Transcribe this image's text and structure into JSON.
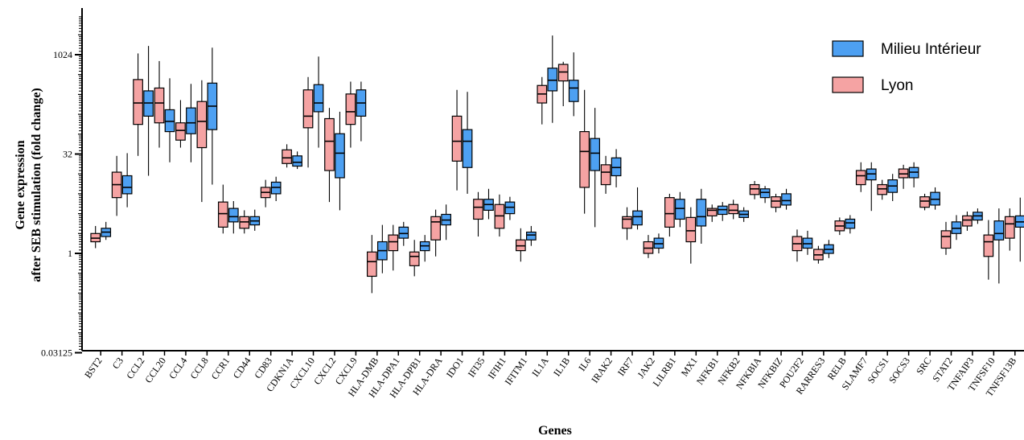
{
  "chart_data": {
    "type": "boxplot",
    "title": "",
    "xlabel": "Genes",
    "ylabel_line1": "Gene expression",
    "ylabel_line2": "after SEB stimulation (fold change)",
    "y_scale": "log2",
    "ylim": [
      0.03125,
      4096
    ],
    "y_ticks": [
      {
        "value": 0.03125,
        "label": "0.03125"
      },
      {
        "value": 1,
        "label": "1"
      },
      {
        "value": 32,
        "label": "32"
      },
      {
        "value": 1024,
        "label": "1024"
      }
    ],
    "legend_position": "top-right",
    "series_colors": {
      "Milieu Intérieur": "#4da0f2",
      "Lyon": "#f5a3a3"
    },
    "categories": [
      "BST2",
      "C3",
      "CCL2",
      "CCL20",
      "CCL4",
      "CCL8",
      "CCR1",
      "CD44",
      "CD83",
      "CDKN1A",
      "CXCL10",
      "CXCL2",
      "CXCL9",
      "HLA-DMB",
      "HLA-DPA1",
      "HLA-DPB1",
      "HLA-DRA",
      "IDO1",
      "IFI35",
      "IFIH1",
      "IFITM1",
      "IL1A",
      "IL1B",
      "IL6",
      "IRAK2",
      "IRF7",
      "JAK2",
      "LILRB1",
      "MX1",
      "NFKB1",
      "NFKB2",
      "NFKBIA",
      "NFKBIZ",
      "POU2F2",
      "RARRES3",
      "RELB",
      "SLAMF7",
      "SOCS1",
      "SOCS3",
      "SRC",
      "STAT2",
      "TNFAIP3",
      "TNFSF10",
      "TNFSF13B"
    ],
    "series": [
      {
        "name": "Lyon",
        "boxes": [
          [
            1.2,
            1.5,
            1.7,
            2.0,
            2.6
          ],
          [
            3.7,
            7.0,
            11,
            17,
            30
          ],
          [
            30,
            90,
            190,
            430,
            1070
          ],
          [
            40,
            95,
            190,
            320,
            820
          ],
          [
            40,
            52,
            73,
            95,
            210
          ],
          [
            6,
            40,
            100,
            200,
            420
          ],
          [
            2.0,
            2.5,
            4.0,
            6.0,
            11
          ],
          [
            2.0,
            2.4,
            3.0,
            3.6,
            4.5
          ],
          [
            5.0,
            7.0,
            8.4,
            10,
            13
          ],
          [
            20,
            23,
            28,
            37,
            45
          ],
          [
            20,
            80,
            120,
            300,
            470
          ],
          [
            6,
            18,
            50,
            110,
            160
          ],
          [
            40,
            90,
            140,
            260,
            400
          ],
          [
            0.25,
            0.45,
            0.75,
            1.05,
            1.9
          ],
          [
            0.55,
            1.1,
            1.5,
            1.9,
            2.7
          ],
          [
            0.45,
            0.65,
            0.9,
            1.05,
            1.6
          ],
          [
            0.9,
            1.6,
            3.0,
            3.6,
            4.6
          ],
          [
            9,
            25,
            50,
            120,
            300
          ],
          [
            1.8,
            3.3,
            5.0,
            6.6,
            8.5
          ],
          [
            1.8,
            2.4,
            3.7,
            5.5,
            7.8
          ],
          [
            0.75,
            1.1,
            1.3,
            1.6,
            2.4
          ],
          [
            90,
            190,
            260,
            350,
            470
          ],
          [
            170,
            410,
            560,
            730,
            800
          ],
          [
            4,
            10,
            35,
            70,
            300
          ],
          [
            8,
            11,
            17,
            22,
            30
          ],
          [
            1.6,
            2.4,
            3.3,
            3.6,
            5.0
          ],
          [
            0.85,
            1.0,
            1.2,
            1.5,
            1.9
          ],
          [
            1.8,
            2.5,
            4.0,
            7.0,
            8.0
          ],
          [
            0.7,
            1.5,
            2.2,
            3.5,
            5.0
          ],
          [
            3.0,
            3.7,
            4.5,
            4.8,
            5.5
          ],
          [
            3.3,
            4.0,
            4.5,
            5.5,
            6.5
          ],
          [
            6.6,
            7.8,
            9.5,
            11,
            12.5
          ],
          [
            4.2,
            5.0,
            6.2,
            7.2,
            8.0
          ],
          [
            0.75,
            1.1,
            1.4,
            1.8,
            2.3
          ],
          [
            0.7,
            0.8,
            0.95,
            1.15,
            1.3
          ],
          [
            1.9,
            2.2,
            2.6,
            3.1,
            3.5
          ],
          [
            8.5,
            11,
            15,
            18,
            24
          ],
          [
            6.5,
            7.8,
            9.5,
            11,
            13
          ],
          [
            9.5,
            14,
            16,
            19,
            22
          ],
          [
            4.5,
            5.0,
            6.2,
            7.2,
            8.0
          ],
          [
            0.95,
            1.2,
            1.8,
            2.2,
            3.0
          ],
          [
            2.2,
            2.6,
            3.2,
            3.7,
            4.3
          ],
          [
            0.4,
            0.9,
            1.5,
            1.9,
            3.2
          ],
          [
            1.1,
            1.7,
            2.8,
            3.6,
            4.8
          ]
        ]
      },
      {
        "name": "Milieu Intérieur",
        "boxes": [
          [
            1.6,
            1.8,
            2.1,
            2.4,
            3.0
          ],
          [
            5.0,
            8.0,
            10,
            15,
            33
          ],
          [
            15,
            120,
            190,
            290,
            1390
          ],
          [
            24,
            70,
            100,
            150,
            450
          ],
          [
            24,
            65,
            95,
            160,
            370
          ],
          [
            11,
            75,
            170,
            380,
            1310
          ],
          [
            2.0,
            3.0,
            3.6,
            4.8,
            6.2
          ],
          [
            2.2,
            2.7,
            3.1,
            3.6,
            4.6
          ],
          [
            6.2,
            8.0,
            10,
            12,
            14.5
          ],
          [
            19,
            21,
            24,
            30,
            35
          ],
          [
            40,
            140,
            190,
            360,
            960
          ],
          [
            4.5,
            14,
            33,
            65,
            140
          ],
          [
            50,
            120,
            190,
            300,
            400
          ],
          [
            0.5,
            0.8,
            1.1,
            1.5,
            2.7
          ],
          [
            1.3,
            1.7,
            2.0,
            2.5,
            3.0
          ],
          [
            0.75,
            1.1,
            1.3,
            1.5,
            1.9
          ],
          [
            1.6,
            2.7,
            3.2,
            3.9,
            5.5
          ],
          [
            8,
            20,
            50,
            75,
            280
          ],
          [
            3.3,
            4.5,
            5.5,
            6.6,
            9.5
          ],
          [
            3.2,
            4.0,
            5.0,
            6.0,
            7.2
          ],
          [
            1.3,
            1.6,
            1.9,
            2.1,
            2.6
          ],
          [
            95,
            290,
            420,
            640,
            2000
          ],
          [
            120,
            200,
            320,
            420,
            1110
          ],
          [
            2.5,
            18,
            33,
            55,
            160
          ],
          [
            10,
            15,
            20,
            28,
            38
          ],
          [
            2.3,
            2.7,
            3.6,
            4.4,
            10
          ],
          [
            1.0,
            1.2,
            1.4,
            1.7,
            2.0
          ],
          [
            2.5,
            3.3,
            4.8,
            6.6,
            8.5
          ],
          [
            1.4,
            2.6,
            3.6,
            6.6,
            9.5
          ],
          [
            3.1,
            3.9,
            4.6,
            5.2,
            6.0
          ],
          [
            3.0,
            3.5,
            3.9,
            4.4,
            5.0
          ],
          [
            5.8,
            7.0,
            8.4,
            9.5,
            10.5
          ],
          [
            4.6,
            5.4,
            6.3,
            8.0,
            9.5
          ],
          [
            0.95,
            1.2,
            1.4,
            1.7,
            2.2
          ],
          [
            0.85,
            1.0,
            1.15,
            1.35,
            1.6
          ],
          [
            2.0,
            2.4,
            2.9,
            3.3,
            3.8
          ],
          [
            4.4,
            13,
            16,
            19,
            24
          ],
          [
            6.2,
            8.4,
            10.5,
            13,
            16
          ],
          [
            10,
            14,
            17,
            20,
            24
          ],
          [
            4.6,
            5.4,
            6.6,
            8.4,
            10
          ],
          [
            1.6,
            2.0,
            2.4,
            3.0,
            3.8
          ],
          [
            2.8,
            3.2,
            3.7,
            4.2,
            4.8
          ],
          [
            0.35,
            1.6,
            2.0,
            3.1,
            4.8
          ],
          [
            0.75,
            2.5,
            3.0,
            3.7,
            7.0
          ]
        ]
      }
    ]
  },
  "legend": {
    "items": [
      {
        "label": "Milieu Intérieur",
        "color": "#4da0f2"
      },
      {
        "label": "Lyon",
        "color": "#f5a3a3"
      }
    ]
  }
}
